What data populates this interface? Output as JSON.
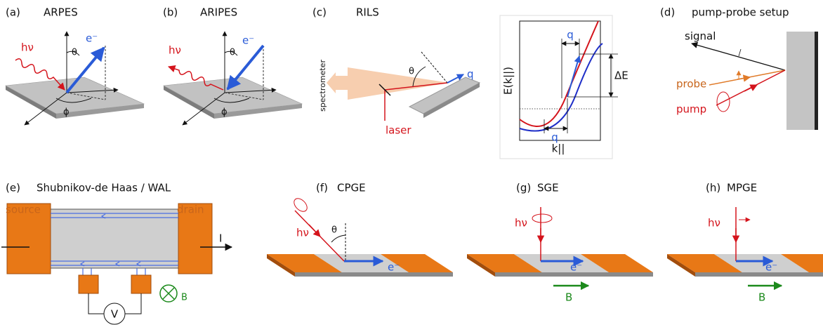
{
  "panels": {
    "a": {
      "label": "(a)",
      "title": "ARPES",
      "photon": "hν",
      "theta": "θ",
      "electron": "e⁻",
      "phi": "ϕ"
    },
    "b": {
      "label": "(b)",
      "title": "ARIPES",
      "photon": "hν",
      "theta": "θ",
      "electron": "e⁻",
      "phi": "ϕ"
    },
    "c": {
      "label": "(c)",
      "title": "RILS",
      "spectrometer": "spectrometer",
      "theta": "θ",
      "q": "q",
      "laser": "laser",
      "graph": {
        "q_top": "q",
        "delta_e": "ΔE",
        "y_axis": "E(k||)",
        "q_bottom": "q",
        "x_axis": "k||"
      }
    },
    "d": {
      "label": "(d)",
      "title": "pump-probe setup",
      "signal": "signal",
      "probe": "probe",
      "pump": "pump"
    },
    "e": {
      "label": "(e)",
      "title": "Shubnikov-de Haas / WAL",
      "source": "source",
      "drain": "drain",
      "current": "I",
      "voltage": "V",
      "field": "B"
    },
    "f": {
      "label": "(f)",
      "title": "CPGE",
      "photon": "hν",
      "theta": "θ",
      "electron": "e⁻"
    },
    "g": {
      "label": "(g)",
      "title": "SGE",
      "photon": "hν",
      "electron": "e⁻",
      "field": "B"
    },
    "h": {
      "label": "(h)",
      "title": "MPGE",
      "photon": "hν",
      "electron": "e⁻",
      "field": "B"
    }
  }
}
